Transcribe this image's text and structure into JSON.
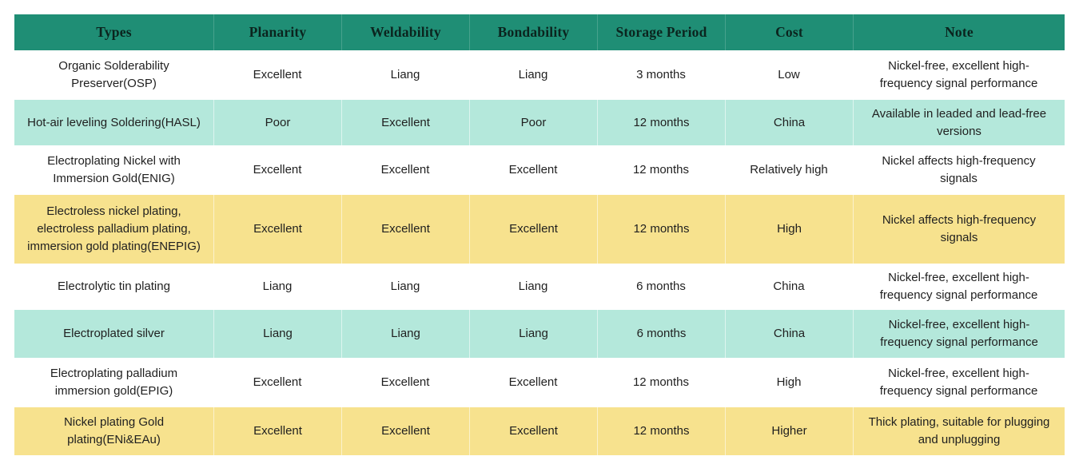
{
  "chart_data": {
    "type": "table",
    "title": "",
    "columns": [
      "Types",
      "Planarity",
      "Weldability",
      "Bondability",
      "Storage Period",
      "Cost",
      "Note"
    ],
    "rows": [
      {
        "type": "Organic Solderability Preserver(OSP)",
        "planarity": "Excellent",
        "weldability": "Liang",
        "bondability": "Liang",
        "storage": "3 months",
        "cost": "Low",
        "note": "Nickel-free, excellent high-frequency signal performance"
      },
      {
        "type": "Hot-air leveling Soldering(HASL)",
        "planarity": "Poor",
        "weldability": "Excellent",
        "bondability": "Poor",
        "storage": "12 months",
        "cost": "China",
        "note": "Available in leaded and lead-free versions"
      },
      {
        "type": "Electroplating Nickel with Immersion Gold(ENIG)",
        "planarity": "Excellent",
        "weldability": "Excellent",
        "bondability": "Excellent",
        "storage": "12 months",
        "cost": "Relatively high",
        "note": "Nickel affects high-frequency signals"
      },
      {
        "type": "Electroless nickel plating, electroless palladium plating, immersion gold plating(ENEPIG)",
        "planarity": "Excellent",
        "weldability": "Excellent",
        "bondability": "Excellent",
        "storage": "12 months",
        "cost": "High",
        "note": "Nickel affects high-frequency signals"
      },
      {
        "type": "Electrolytic tin plating",
        "planarity": "Liang",
        "weldability": "Liang",
        "bondability": "Liang",
        "storage": "6 months",
        "cost": "China",
        "note": "Nickel-free, excellent high-frequency signal performance"
      },
      {
        "type": "Electroplated silver",
        "planarity": "Liang",
        "weldability": "Liang",
        "bondability": "Liang",
        "storage": "6 months",
        "cost": "China",
        "note": "Nickel-free, excellent high-frequency signal performance"
      },
      {
        "type": "Electroplating palladium immersion gold(EPIG)",
        "planarity": "Excellent",
        "weldability": "Excellent",
        "bondability": "Excellent",
        "storage": "12 months",
        "cost": "High",
        "note": "Nickel-free, excellent high-frequency signal performance"
      },
      {
        "type": "Nickel plating Gold plating(ENi&EAu)",
        "planarity": "Excellent",
        "weldability": "Excellent",
        "bondability": "Excellent",
        "storage": "12 months",
        "cost": "Higher",
        "note": "Thick plating, suitable for plugging and unplugging"
      }
    ],
    "layout_hints": {
      "row_banding": [
        "white",
        "teal",
        "white",
        "yellow",
        "white",
        "teal",
        "white",
        "yellow"
      ],
      "header_position": "top",
      "cell_alignment": "center"
    },
    "colors": {
      "header_bg": "#1f8e75",
      "header_text": "#0b241e",
      "teal_row_bg": "#b4e8db",
      "yellow_row_bg": "#f7e28e",
      "white_row_bg": "#ffffff",
      "body_text": "#1f1f1f"
    }
  }
}
